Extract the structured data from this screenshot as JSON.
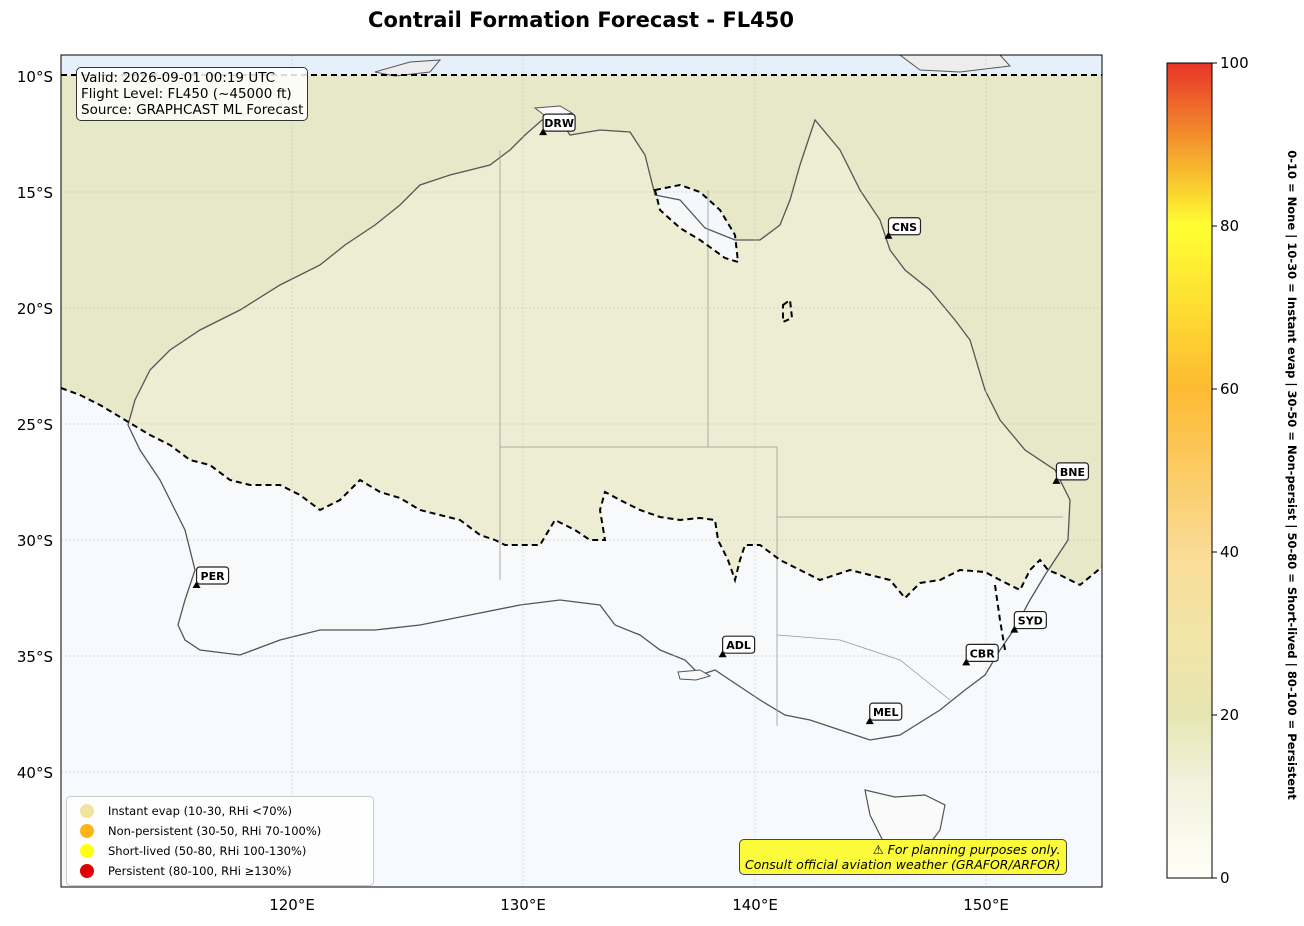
{
  "title": "Contrail Formation Forecast - FL450",
  "info": {
    "valid": "Valid: 2026-09-01 00:19 UTC",
    "flight_level": "Flight Level: FL450 (~45000 ft)",
    "source": "Source: GRAPHCAST ML Forecast"
  },
  "axes": {
    "lon_ticks": [
      "120°E",
      "130°E",
      "140°E",
      "150°E"
    ],
    "lat_ticks": [
      "10°S",
      "15°S",
      "20°S",
      "25°S",
      "30°S",
      "35°S",
      "40°S"
    ]
  },
  "colorbar": {
    "ticks": [
      "0",
      "20",
      "40",
      "60",
      "80",
      "100"
    ],
    "label": "0-10 = None  |  10-30 = Instant evap  |  30-50 = Non-persist  |  50-80 = Short-lived  |  80-100 = Persistent",
    "colors": [
      "#fffff8",
      "#e6e6b2",
      "#fadc96",
      "#fdba32",
      "#ffff32",
      "#e83428"
    ]
  },
  "cities": [
    {
      "code": "DRW",
      "lon": 130.84,
      "lat": -12.46
    },
    {
      "code": "CNS",
      "lon": 145.77,
      "lat": -16.92
    },
    {
      "code": "BNE",
      "lon": 153.03,
      "lat": -27.47
    },
    {
      "code": "PER",
      "lon": 115.86,
      "lat": -31.95
    },
    {
      "code": "SYD",
      "lon": 151.21,
      "lat": -33.87
    },
    {
      "code": "ADL",
      "lon": 138.6,
      "lat": -34.93
    },
    {
      "code": "CBR",
      "lon": 149.13,
      "lat": -35.28
    },
    {
      "code": "MEL",
      "lon": 144.96,
      "lat": -37.81
    }
  ],
  "legend": [
    {
      "label": "Instant evap (10-30, RHi <70%)",
      "color": "#f1e3a0"
    },
    {
      "label": "Non-persistent (30-50, RHi 70-100%)",
      "color": "#fdb515"
    },
    {
      "label": "Short-lived (50-80, RHi 100-130%)",
      "color": "#ffff10"
    },
    {
      "label": "Persistent (80-100, RHi ≥130%)",
      "color": "#e40000"
    }
  ],
  "warning": {
    "line1": "⚠ For planning purposes only.",
    "line2": "Consult official aviation weather (GRAFOR/ARFOR)"
  }
}
